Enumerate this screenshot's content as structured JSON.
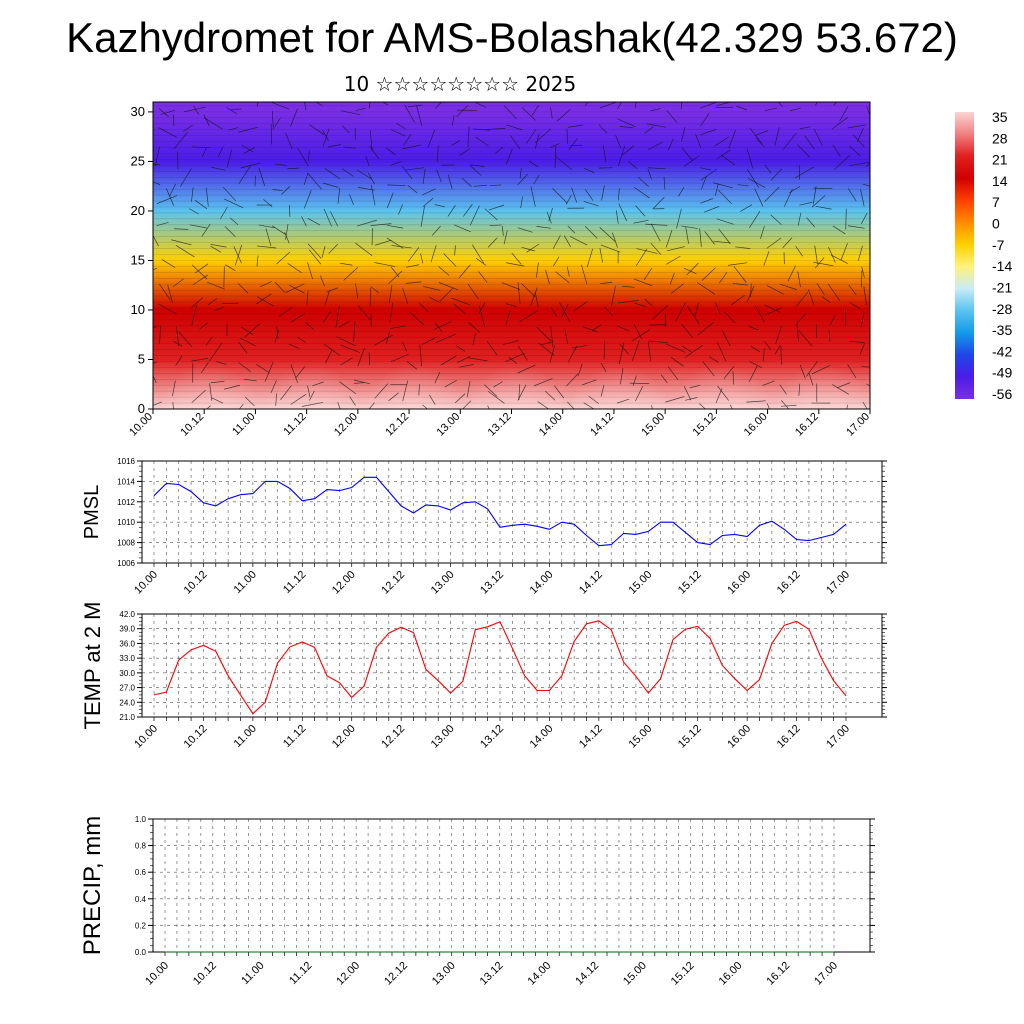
{
  "header": {
    "title": "Kazhydromet for AMS-Bolashak(42.329 53.672)",
    "subtitle": "10 ☆☆☆☆☆☆☆☆ 2025"
  },
  "colors": {
    "pmsl_line": "#0000ff",
    "temp_line": "#ff0000",
    "precip_line": "#006400",
    "grid": "#555555"
  },
  "chart_data": [
    {
      "id": "cross_section",
      "type": "heatmap",
      "ylim": [
        0,
        31
      ],
      "yticks": [
        0,
        5,
        10,
        15,
        20,
        25,
        30
      ],
      "xticks": [
        "10.00",
        "10.12",
        "11.00",
        "11.12",
        "12.00",
        "12.12",
        "13.00",
        "13.12",
        "14.00",
        "14.12",
        "15.00",
        "15.12",
        "16.00",
        "16.12",
        "17.00"
      ],
      "colorbar": {
        "labels": [
          "35",
          "28",
          "21",
          "14",
          "7",
          "0",
          "-7",
          "-14",
          "-21",
          "-28",
          "-35",
          "-42",
          "-49",
          "-56"
        ],
        "colors": [
          "#fbd4d4",
          "#f08080",
          "#e02020",
          "#d00000",
          "#ff4000",
          "#ff8c00",
          "#ffd000",
          "#fff27a",
          "#c9ecf6",
          "#5bc3f0",
          "#139be8",
          "#1f46e6",
          "#4a1de6",
          "#7a2ee6"
        ]
      },
      "height_temperature_profile": [
        {
          "height": 0,
          "temp": 35
        },
        {
          "height": 5,
          "temp": 24
        },
        {
          "height": 10,
          "temp": 12
        },
        {
          "height": 15,
          "temp": -7
        },
        {
          "height": 20,
          "temp": -28
        },
        {
          "height": 25,
          "temp": -49
        },
        {
          "height": 30,
          "temp": -58
        }
      ]
    },
    {
      "id": "pmsl",
      "type": "line",
      "ylabel": "PMSL",
      "ylim": [
        1006,
        1016
      ],
      "yticks": [
        "1006",
        "1008",
        "1010",
        "1012",
        "1014",
        "1016"
      ],
      "xticks": [
        "10.00",
        "10.12",
        "11.00",
        "11.12",
        "12.00",
        "12.12",
        "13.00",
        "13.12",
        "14.00",
        "14.12",
        "15.00",
        "15.12",
        "16.00",
        "16.12",
        "17.00"
      ],
      "x_step_hours": 3,
      "values": [
        1012.6,
        1013.8,
        1013.7,
        1013.0,
        1011.9,
        1011.6,
        1012.3,
        1012.7,
        1012.8,
        1014.0,
        1014.0,
        1013.3,
        1012.1,
        1012.3,
        1013.2,
        1013.1,
        1013.4,
        1014.4,
        1014.4,
        1013.0,
        1011.6,
        1010.9,
        1011.7,
        1011.6,
        1011.2,
        1011.9,
        1012.0,
        1011.3,
        1009.5,
        1009.7,
        1009.8,
        1009.6,
        1009.3,
        1010.0,
        1009.8,
        1008.7,
        1007.7,
        1007.8,
        1008.9,
        1008.8,
        1009.1,
        1010.0,
        1010.0,
        1009.0,
        1008.0,
        1007.8,
        1008.7,
        1008.8,
        1008.6,
        1009.7,
        1010.1,
        1009.3,
        1008.3,
        1008.2,
        1008.5,
        1008.8,
        1009.8
      ]
    },
    {
      "id": "temp2m",
      "type": "line",
      "ylabel": "TEMP at 2 M",
      "ylim": [
        21.0,
        42.0
      ],
      "yticks": [
        "21.0",
        "24.0",
        "27.0",
        "30.0",
        "33.0",
        "36.0",
        "39.0",
        "42.0"
      ],
      "xticks": [
        "10.00",
        "10.12",
        "11.00",
        "11.12",
        "12.00",
        "12.12",
        "13.00",
        "13.12",
        "14.00",
        "14.12",
        "15.00",
        "15.12",
        "16.00",
        "16.12",
        "17.00"
      ],
      "x_step_hours": 3,
      "values": [
        25.5,
        26.1,
        32.6,
        34.7,
        35.6,
        34.4,
        29.4,
        25.5,
        21.7,
        24.0,
        32.0,
        35.3,
        36.3,
        35.2,
        29.4,
        28.0,
        25.0,
        27.3,
        35.2,
        38.1,
        39.3,
        38.2,
        30.7,
        28.4,
        25.9,
        28.3,
        38.8,
        39.4,
        40.4,
        35.0,
        29.4,
        26.4,
        26.4,
        29.4,
        36.4,
        40.0,
        40.6,
        38.8,
        32.2,
        29.3,
        25.9,
        28.8,
        36.8,
        38.9,
        39.5,
        37.0,
        31.5,
        28.8,
        26.4,
        28.6,
        36.0,
        39.7,
        40.5,
        38.9,
        33.0,
        28.4,
        25.3
      ]
    },
    {
      "id": "precip",
      "type": "line",
      "ylabel": "PRECIP, mm",
      "ylim": [
        0.0,
        1.0
      ],
      "yticks": [
        "0.0",
        "0.2",
        "0.4",
        "0.6",
        "0.8",
        "1.0"
      ],
      "xticks": [
        "10.00",
        "10.12",
        "11.00",
        "11.12",
        "12.00",
        "12.12",
        "13.00",
        "13.12",
        "14.00",
        "14.12",
        "15.00",
        "15.12",
        "16.00",
        "16.12",
        "17.00"
      ],
      "x_step_hours": 3,
      "values": [
        0,
        0,
        0,
        0,
        0,
        0,
        0,
        0,
        0,
        0,
        0,
        0,
        0,
        0,
        0,
        0,
        0,
        0,
        0,
        0,
        0,
        0,
        0,
        0,
        0,
        0,
        0,
        0,
        0,
        0,
        0,
        0,
        0,
        0,
        0,
        0,
        0,
        0,
        0,
        0,
        0,
        0,
        0,
        0,
        0,
        0,
        0,
        0,
        0,
        0,
        0,
        0,
        0,
        0,
        0,
        0,
        0
      ]
    }
  ]
}
